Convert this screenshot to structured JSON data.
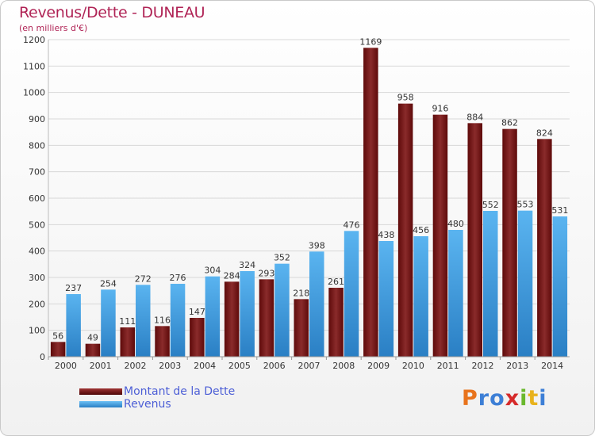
{
  "header": {
    "title": "Revenus/Dette - DUNEAU",
    "subtitle": "(en milliers d'€)"
  },
  "chart_data": {
    "type": "bar",
    "categories": [
      "2000",
      "2001",
      "2002",
      "2003",
      "2004",
      "2005",
      "2006",
      "2007",
      "2008",
      "2009",
      "2010",
      "2011",
      "2012",
      "2013",
      "2014"
    ],
    "series": [
      {
        "name": "Montant de la Dette",
        "color": "#7a1a1a",
        "values": [
          56,
          49,
          111,
          116,
          147,
          284,
          293,
          218,
          261,
          1169,
          958,
          916,
          884,
          862,
          824
        ]
      },
      {
        "name": "Revenus",
        "color": "#3d9be0",
        "values": [
          237,
          254,
          272,
          276,
          304,
          324,
          352,
          398,
          476,
          438,
          456,
          480,
          552,
          553,
          531
        ]
      }
    ],
    "ylim": [
      0,
      1200
    ],
    "yticks": [
      0,
      100,
      200,
      300,
      400,
      500,
      600,
      700,
      800,
      900,
      1000,
      1100,
      1200
    ],
    "grid": true,
    "legend_position": "bottom-left"
  },
  "legend": {
    "items": [
      {
        "label": "Montant de la Dette",
        "color": "#6b0c0c"
      },
      {
        "label": "Revenus",
        "color": "#3d9be0"
      }
    ]
  },
  "logo": {
    "letters": [
      "P",
      "r",
      "o",
      "x",
      "i",
      "t",
      "i"
    ],
    "colors": [
      "#e8731c",
      "#3d7fd6",
      "#3d7fd6",
      "#d62a2a",
      "#6ab82e",
      "#e8b21c",
      "#3d7fd6"
    ]
  }
}
